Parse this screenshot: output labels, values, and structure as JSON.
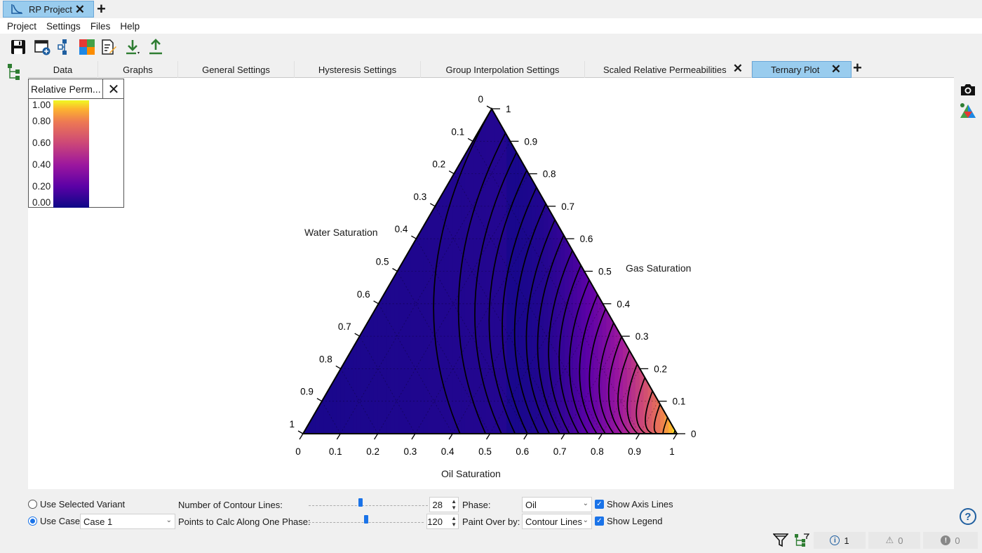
{
  "window": {
    "tab_label": "RP Project",
    "close": "✕",
    "new_tab": "+"
  },
  "menu": [
    "Project",
    "Settings",
    "Files",
    "Help"
  ],
  "toolbar": [
    "save-icon",
    "new-window-icon",
    "hierarchy-icon",
    "puzzle-icon",
    "edit-document-icon",
    "download-icon",
    "upload-icon"
  ],
  "tabs": [
    {
      "label": "Data"
    },
    {
      "label": "Graphs"
    },
    {
      "label": "General Settings"
    },
    {
      "label": "Hysteresis Settings"
    },
    {
      "label": "Group Interpolation Settings"
    },
    {
      "label": "Scaled Relative Permeabilities",
      "close": "✕"
    },
    {
      "label": "Ternary Plot",
      "close": "✕",
      "active": true
    }
  ],
  "tab_add": "+",
  "legend": {
    "title": "Relative Perm...",
    "close": "✕",
    "ticks": [
      "1.00",
      "0.80",
      "0.60",
      "0.40",
      "0.20",
      "0.00"
    ]
  },
  "chart_data": {
    "type": "ternary contour",
    "axes": {
      "bottom": {
        "label": "Oil Saturation",
        "ticks": [
          "0",
          "0.1",
          "0.2",
          "0.3",
          "0.4",
          "0.5",
          "0.6",
          "0.7",
          "0.8",
          "0.9",
          "1"
        ]
      },
      "left": {
        "label": "Water Saturation",
        "ticks": [
          "0",
          "0.1",
          "0.2",
          "0.3",
          "0.4",
          "0.5",
          "0.6",
          "0.7",
          "0.8",
          "0.9",
          "1"
        ]
      },
      "right": {
        "label": "Gas Saturation",
        "ticks": [
          "1",
          "0.9",
          "0.8",
          "0.7",
          "0.6",
          "0.5",
          "0.4",
          "0.3",
          "0.2",
          "0.1",
          "0"
        ]
      }
    },
    "colorscale": "plasma",
    "range": [
      0,
      1
    ],
    "contour_count": 28,
    "phase": "Oil"
  },
  "controls": {
    "use_selected_variant": "Use Selected Variant",
    "use_case": "Use Case",
    "case_value": "Case 1",
    "num_contour_label": "Number of Contour Lines:",
    "num_contour_value": "28",
    "num_contour_level": 0.42,
    "points_label": "Points to Calc Along One Phase:",
    "points_value": "120",
    "points_level": 0.48,
    "phase_label": "Phase:",
    "phase_value": "Oil",
    "paint_label": "Paint Over by:",
    "paint_value": "Contour Lines",
    "show_axis_lines": "Show Axis Lines",
    "show_legend": "Show Legend",
    "help": "?"
  },
  "status": {
    "info": "1",
    "warnings": "0",
    "errors": "0"
  }
}
